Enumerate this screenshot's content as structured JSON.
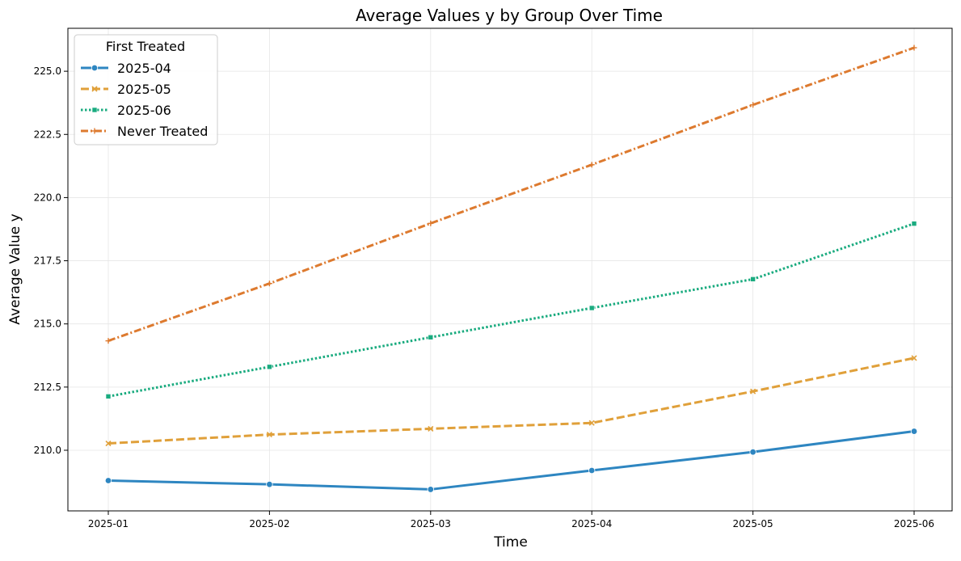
{
  "chart_data": {
    "type": "line",
    "title": "Average Values y by Group Over Time",
    "xlabel": "Time",
    "ylabel": "Average Value y",
    "categories": [
      "2025-01",
      "2025-02",
      "2025-03",
      "2025-04",
      "2025-05",
      "2025-06"
    ],
    "ylim": [
      207.6,
      226.7
    ],
    "yticks": [
      210.0,
      212.5,
      215.0,
      217.5,
      220.0,
      222.5,
      225.0
    ],
    "ytick_labels": [
      "210.0",
      "212.5",
      "215.0",
      "217.5",
      "220.0",
      "222.5",
      "225.0"
    ],
    "grid": true,
    "legend": {
      "title": "First Treated",
      "placement": "top-left"
    },
    "series": [
      {
        "name": "2025-04",
        "values": [
          208.8,
          208.65,
          208.45,
          209.2,
          209.93,
          210.75
        ],
        "color": "#2e86c1",
        "dash": "solid",
        "marker": "circle"
      },
      {
        "name": "2025-05",
        "values": [
          210.27,
          210.62,
          210.85,
          211.08,
          212.33,
          213.65
        ],
        "color": "#e0a03a",
        "dash": "dashed",
        "marker": "x"
      },
      {
        "name": "2025-06",
        "values": [
          212.13,
          213.3,
          214.47,
          215.63,
          216.77,
          218.97
        ],
        "color": "#1aab7f",
        "dash": "dotted",
        "marker": "square"
      },
      {
        "name": "Never Treated",
        "values": [
          214.33,
          216.6,
          218.98,
          221.3,
          223.67,
          225.93
        ],
        "color": "#dd7a2f",
        "dash": "dashdot",
        "marker": "plus"
      }
    ]
  }
}
